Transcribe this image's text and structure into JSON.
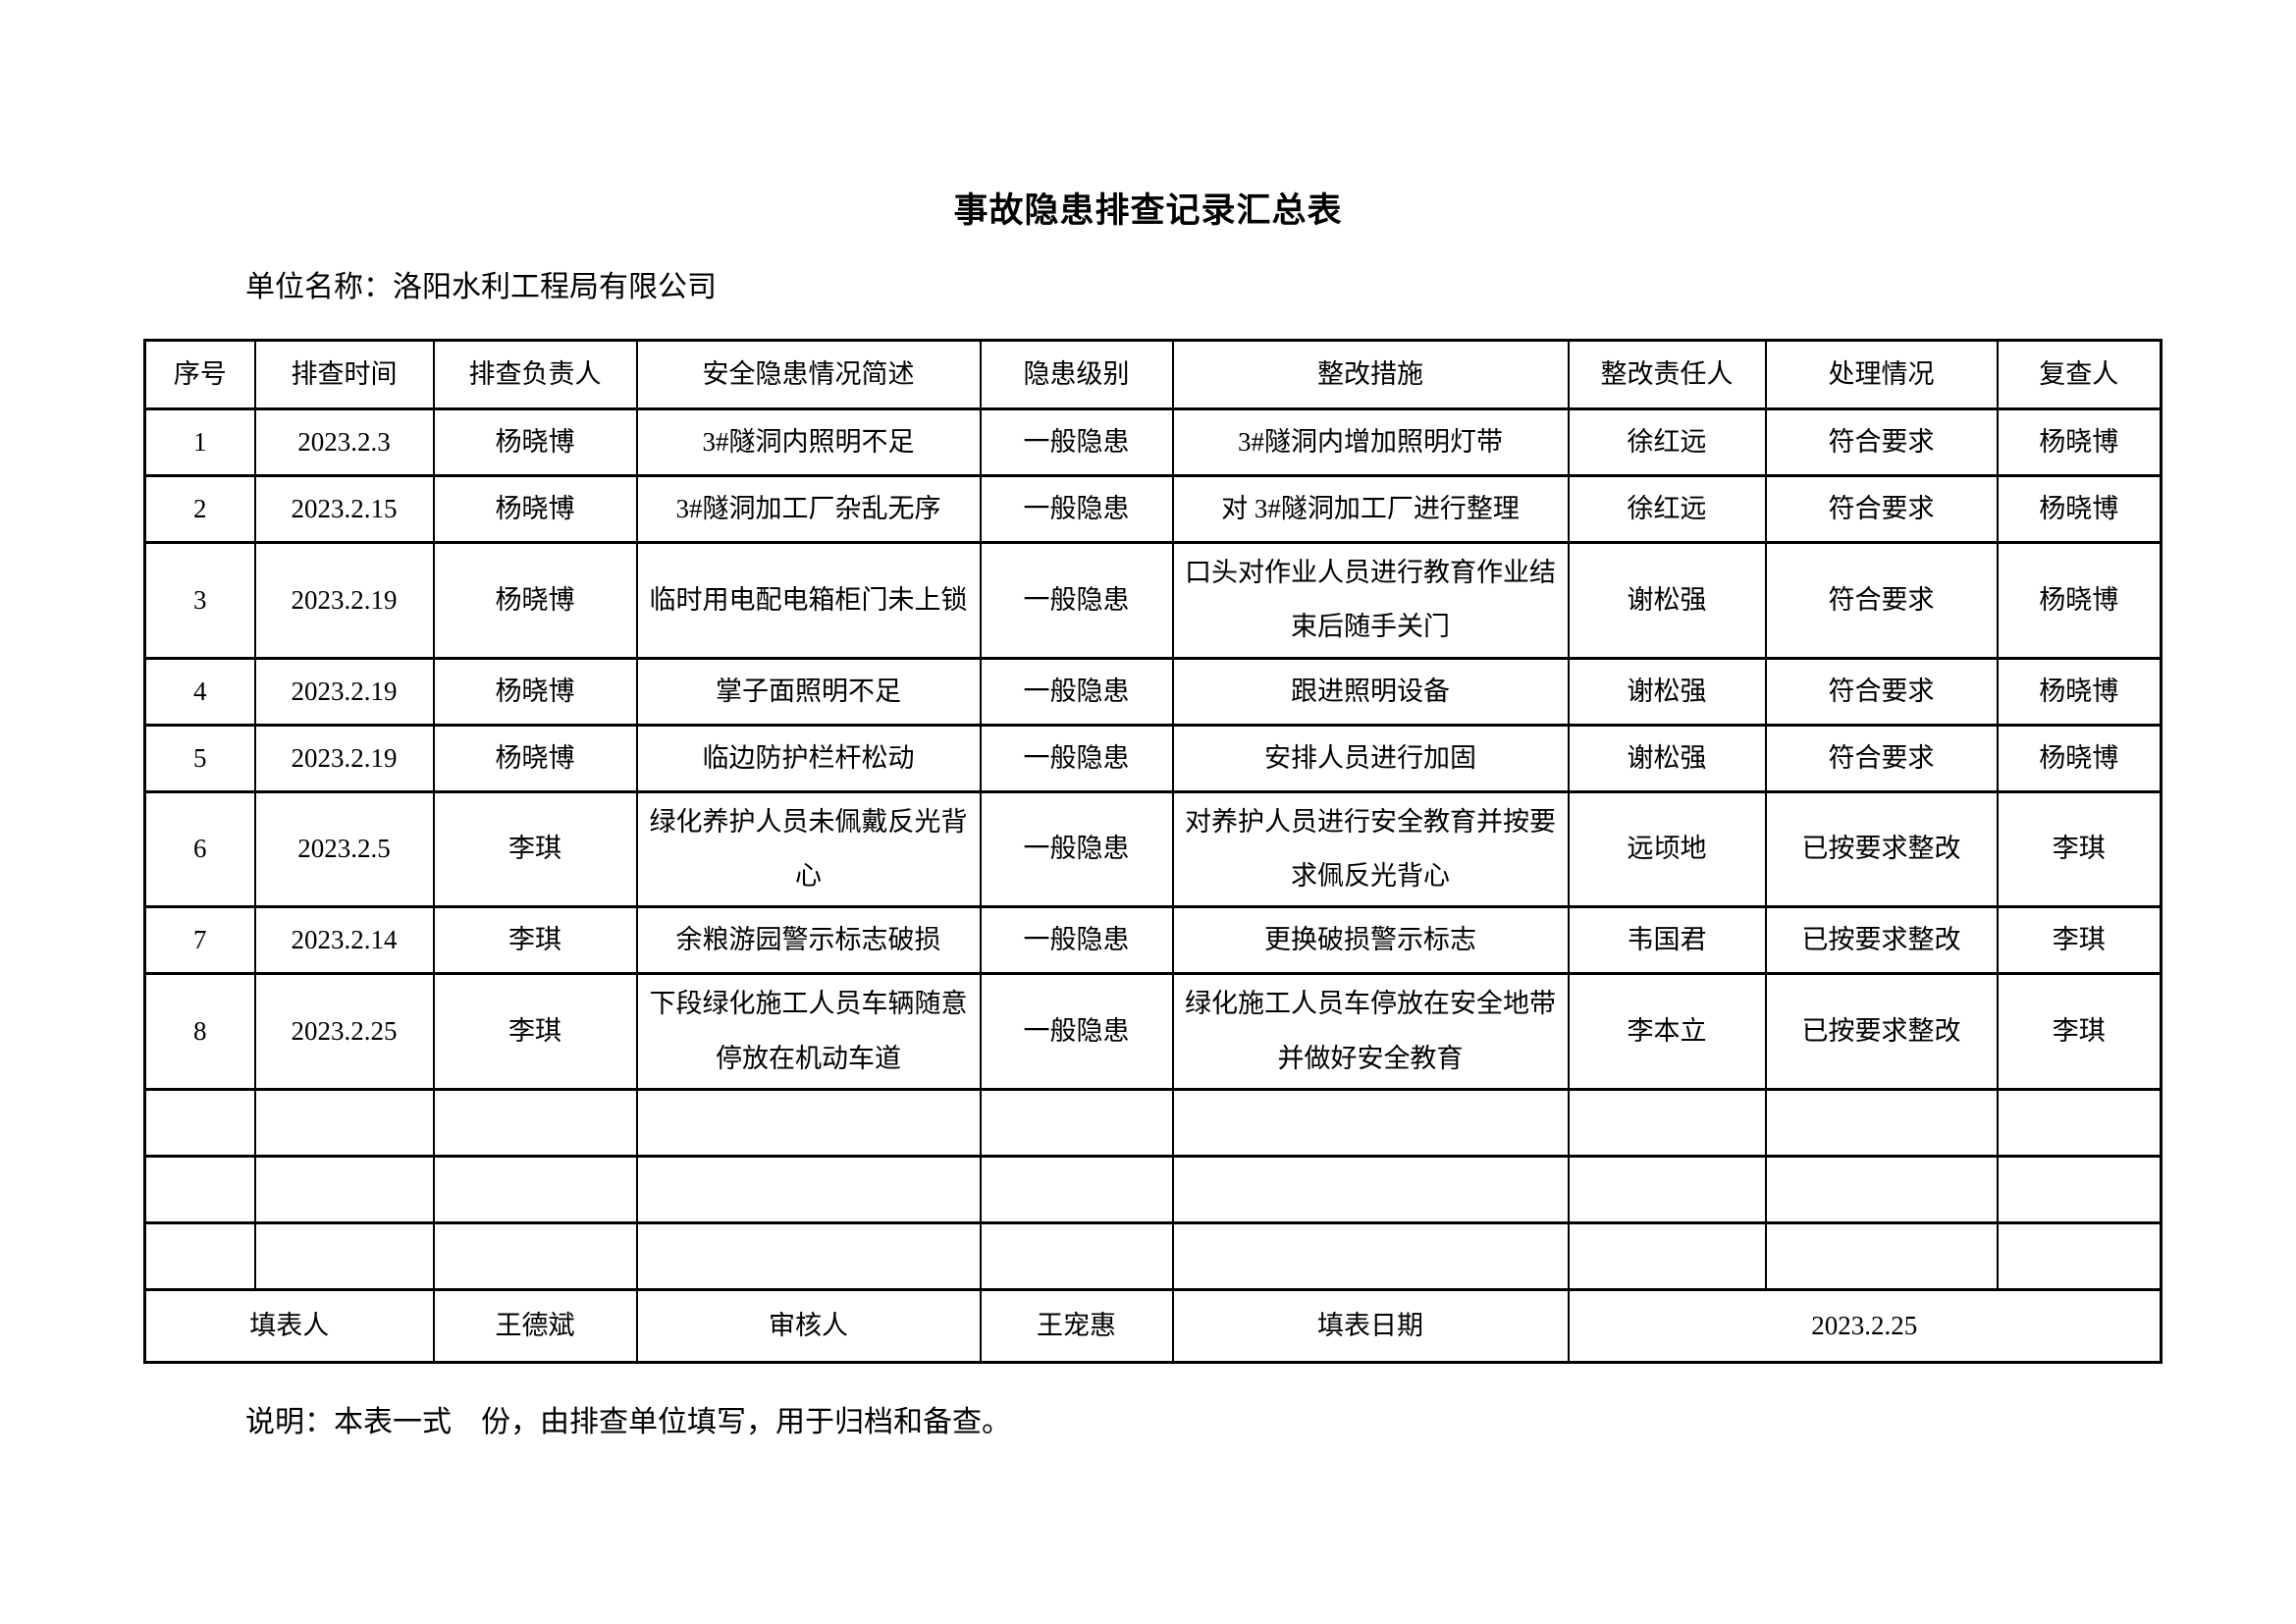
{
  "page": {
    "title": "事故隐患排查记录汇总表",
    "unit_label": "单位名称：洛阳水利工程局有限公司",
    "note": "说明：本表一式　份，由排查单位填写，用于归档和备查。"
  },
  "table": {
    "headers": [
      "序号",
      "排查时间",
      "排查负责人",
      "安全隐患情况简述",
      "隐患级别",
      "整改措施",
      "整改责任人",
      "处理情况",
      "复查人"
    ],
    "rows": [
      [
        "1",
        "2023.2.3",
        "杨晓博",
        "3#隧洞内照明不足",
        "一般隐患",
        "3#隧洞内增加照明灯带",
        "徐红远",
        "符合要求",
        "杨晓博"
      ],
      [
        "2",
        "2023.2.15",
        "杨晓博",
        "3#隧洞加工厂杂乱无序",
        "一般隐患",
        "对 3#隧洞加工厂进行整理",
        "徐红远",
        "符合要求",
        "杨晓博"
      ],
      [
        "3",
        "2023.2.19",
        "杨晓博",
        "临时用电配电箱柜门未上锁",
        "一般隐患",
        "口头对作业人员进行教育作业结束后随手关门",
        "谢松强",
        "符合要求",
        "杨晓博"
      ],
      [
        "4",
        "2023.2.19",
        "杨晓博",
        "掌子面照明不足",
        "一般隐患",
        "跟进照明设备",
        "谢松强",
        "符合要求",
        "杨晓博"
      ],
      [
        "5",
        "2023.2.19",
        "杨晓博",
        "临边防护栏杆松动",
        "一般隐患",
        "安排人员进行加固",
        "谢松强",
        "符合要求",
        "杨晓博"
      ],
      [
        "6",
        "2023.2.5",
        "李琪",
        "绿化养护人员未佩戴反光背心",
        "一般隐患",
        "对养护人员进行安全教育并按要求佩反光背心",
        "远顷地",
        "已按要求整改",
        "李琪"
      ],
      [
        "7",
        "2023.2.14",
        "李琪",
        "余粮游园警示标志破损",
        "一般隐患",
        "更换破损警示标志",
        "韦国君",
        "已按要求整改",
        "李琪"
      ],
      [
        "8",
        "2023.2.25",
        "李琪",
        "下段绿化施工人员车辆随意停放在机动车道",
        "一般隐患",
        "绿化施工人员车停放在安全地带并做好安全教育",
        "李本立",
        "已按要求整改",
        "李琪"
      ]
    ],
    "empty_row_count": 3,
    "footer": {
      "filler_label": "填表人",
      "filler_value": "王德斌",
      "reviewer_label": "审核人",
      "reviewer_value": "王宠惠",
      "date_label": "填表日期",
      "date_value": "2023.2.25"
    }
  }
}
